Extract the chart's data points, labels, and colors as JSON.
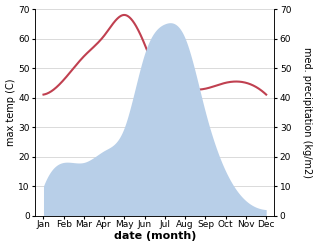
{
  "months": [
    "Jan",
    "Feb",
    "Mar",
    "Apr",
    "May",
    "Jun",
    "Jul",
    "Aug",
    "Sep",
    "Oct",
    "Nov",
    "Dec"
  ],
  "month_indices": [
    0,
    1,
    2,
    3,
    4,
    5,
    6,
    7,
    8,
    9,
    10,
    11
  ],
  "temperature": [
    41,
    46,
    54,
    61,
    68,
    58,
    43,
    42,
    43,
    45,
    45,
    41
  ],
  "precipitation": [
    10,
    18,
    18,
    22,
    30,
    55,
    65,
    60,
    35,
    15,
    5,
    2
  ],
  "temp_color": "#c04050",
  "precip_color": "#b8cfe8",
  "ylim_temp": [
    0,
    70
  ],
  "ylim_precip": [
    0,
    70
  ],
  "yticks_left": [
    0,
    10,
    20,
    30,
    40,
    50,
    60,
    70
  ],
  "yticks_right": [
    0,
    10,
    20,
    30,
    40,
    50,
    60,
    70
  ],
  "xlabel": "date (month)",
  "ylabel_left": "max temp (C)",
  "ylabel_right": "med. precipitation (kg/m2)",
  "bg_color": "#ffffff",
  "grid_color": "#cccccc",
  "label_fontsize": 7,
  "tick_fontsize": 6.5,
  "xlabel_fontsize": 8
}
